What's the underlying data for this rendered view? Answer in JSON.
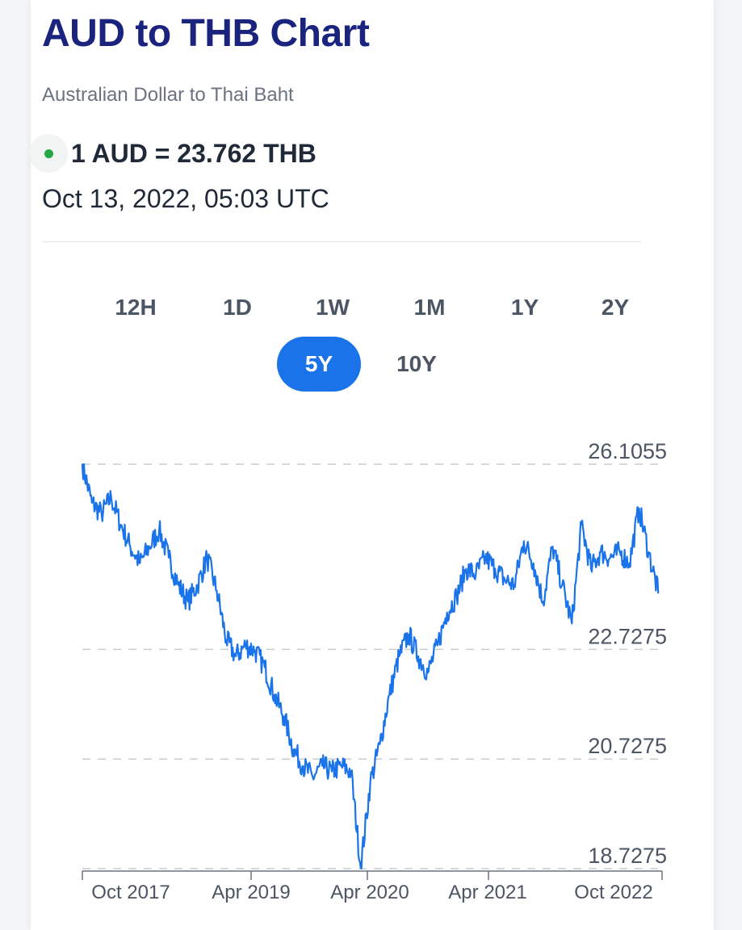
{
  "header": {
    "title": "AUD to THB Chart",
    "subtitle": "Australian Dollar to Thai Baht",
    "rate": "1 AUD = 23.762 THB",
    "timestamp": "Oct 13, 2022, 05:03 UTC"
  },
  "colors": {
    "title": "#1a237e",
    "accent": "#1a73e8",
    "live": "#22a745",
    "line": "#1a73e8"
  },
  "ranges": [
    {
      "label": "12H",
      "active": false
    },
    {
      "label": "1D",
      "active": false
    },
    {
      "label": "1W",
      "active": false
    },
    {
      "label": "1M",
      "active": false
    },
    {
      "label": "1Y",
      "active": false
    },
    {
      "label": "2Y",
      "active": false
    },
    {
      "label": "5Y",
      "active": true
    },
    {
      "label": "10Y",
      "active": false
    }
  ],
  "chart_data": {
    "type": "line",
    "title": "",
    "xlabel": "",
    "ylabel": "",
    "ylim": [
      18.7275,
      26.1055
    ],
    "y_ticks": [
      26.1055,
      22.7275,
      20.7275,
      18.7275
    ],
    "y_tick_labels": [
      "26.1055",
      "22.7275",
      "20.7275",
      "18.7275"
    ],
    "x_ticks": [
      "Oct 2017",
      "Apr 2019",
      "Apr 2020",
      "Apr 2021",
      "Oct 2022"
    ],
    "grid": true,
    "series": [
      {
        "x": [
          "2017-10",
          "2017-11",
          "2017-12",
          "2018-01",
          "2018-02",
          "2018-03",
          "2018-04",
          "2018-05",
          "2018-06",
          "2018-07",
          "2018-08",
          "2018-09",
          "2018-10",
          "2018-11",
          "2018-12",
          "2019-01",
          "2019-02",
          "2019-03",
          "2019-04",
          "2019-05",
          "2019-06",
          "2019-07",
          "2019-08",
          "2019-09",
          "2019-10",
          "2019-11",
          "2019-12",
          "2020-01",
          "2020-02",
          "2020-03",
          "2020-04",
          "2020-05",
          "2020-06",
          "2020-07",
          "2020-08",
          "2020-09",
          "2020-10",
          "2020-11",
          "2020-12",
          "2021-01",
          "2021-02",
          "2021-03",
          "2021-04",
          "2021-05",
          "2021-06",
          "2021-07",
          "2021-08",
          "2021-09",
          "2021-10",
          "2021-11",
          "2021-12",
          "2022-01",
          "2022-02",
          "2022-03",
          "2022-04",
          "2022-05",
          "2022-06",
          "2022-07",
          "2022-08",
          "2022-09",
          "2022-10"
        ],
        "values": [
          26.1,
          25.4,
          25.2,
          25.5,
          25.0,
          24.6,
          24.3,
          24.6,
          24.9,
          24.4,
          23.9,
          23.6,
          23.9,
          24.4,
          23.8,
          22.9,
          22.6,
          22.8,
          22.7,
          22.4,
          21.9,
          21.5,
          20.9,
          20.6,
          20.4,
          20.6,
          20.5,
          20.6,
          20.5,
          18.75,
          20.3,
          21.0,
          21.9,
          22.6,
          23.0,
          22.6,
          22.3,
          22.8,
          23.4,
          23.7,
          24.2,
          24.1,
          24.4,
          24.2,
          24.0,
          23.9,
          24.7,
          24.3,
          23.6,
          24.6,
          23.9,
          23.2,
          25.0,
          24.2,
          24.5,
          24.4,
          24.5,
          24.3,
          25.3,
          24.5,
          23.76
        ]
      }
    ]
  }
}
